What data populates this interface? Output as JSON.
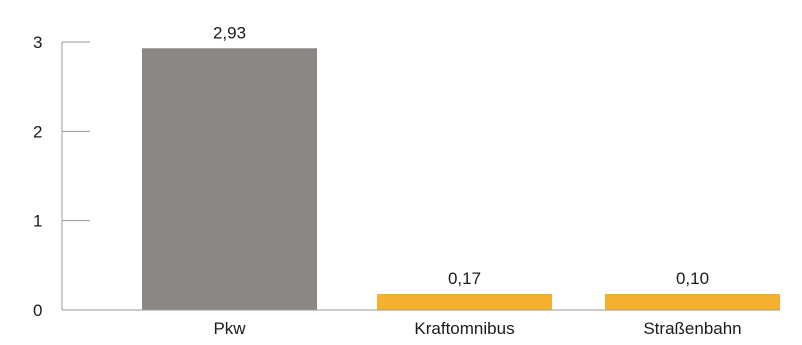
{
  "chart_data": {
    "type": "bar",
    "title": "",
    "xlabel": "",
    "ylabel": "",
    "categories": [
      "Pkw",
      "Kraftomnibus",
      "Straßenbahn"
    ],
    "values": [
      2.93,
      0.17,
      0.1
    ],
    "value_labels": [
      "2,93",
      "0,17",
      "0,10"
    ],
    "bar_colors": [
      "#8b8784",
      "#f5b12e",
      "#f5b12e"
    ],
    "ylim": [
      0,
      3
    ],
    "yticks": [
      0,
      1,
      2,
      3
    ],
    "ytick_labels": [
      "0",
      "1",
      "2",
      "3"
    ],
    "grid": false,
    "axis_color": "#9a9a9a",
    "text_color": "#1a1a1a"
  }
}
